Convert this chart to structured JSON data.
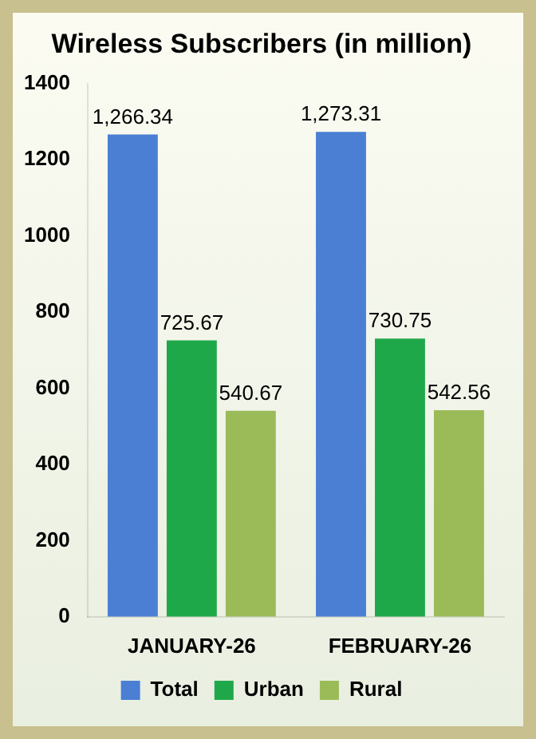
{
  "chart_data": {
    "type": "bar",
    "title": "Wireless Subscribers (in million)",
    "categories": [
      "JANUARY-26",
      "FEBRUARY-26"
    ],
    "series": [
      {
        "name": "Total",
        "color": "#4a7fd4",
        "values": [
          1266.34,
          1273.31
        ],
        "value_labels": [
          "1,266.34",
          "1,273.31"
        ]
      },
      {
        "name": "Urban",
        "color": "#1fa84a",
        "values": [
          725.67,
          730.75
        ],
        "value_labels": [
          "725.67",
          "730.75"
        ]
      },
      {
        "name": "Rural",
        "color": "#9bbb59",
        "values": [
          540.67,
          542.56
        ],
        "value_labels": [
          "540.67",
          "542.56"
        ]
      }
    ],
    "ylim": [
      0,
      1400
    ],
    "yticks": [
      0,
      200,
      400,
      600,
      800,
      1000,
      1200,
      1400
    ],
    "grid": false,
    "legend": "bottom"
  }
}
